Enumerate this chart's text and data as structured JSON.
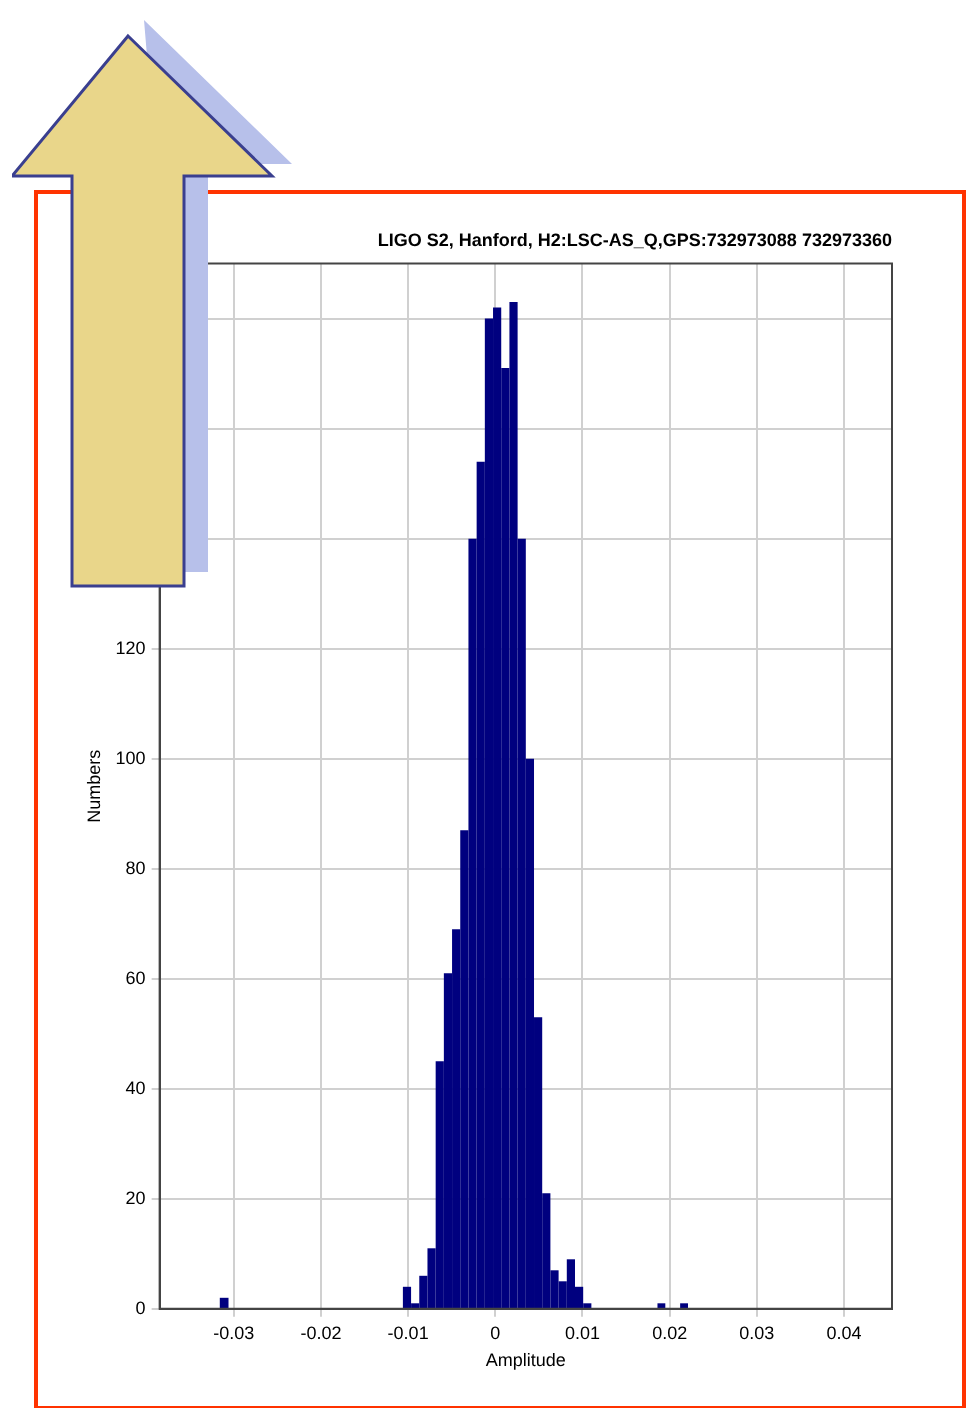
{
  "chart_data": {
    "type": "histogram",
    "title": "LIGO S2, Hanford, H2:LSC-AS_Q,GPS:732973088 732973360",
    "xlabel": "Amplitude",
    "ylabel": "Numbers",
    "bins": [
      -0.0316,
      -0.0306,
      -0.0106,
      -0.00966,
      -0.00872,
      -0.00778,
      -0.00684,
      -0.0059,
      -0.00496,
      -0.00402,
      -0.00308,
      -0.00214,
      -0.0012,
      -0.00026,
      0.00068,
      0.00162,
      0.00256,
      0.0035,
      0.00444,
      0.00538,
      0.00632,
      0.00726,
      0.0082,
      0.00914,
      0.01008,
      0.01102,
      0.0186,
      0.0195,
      0.0212,
      0.0221
    ],
    "values": [
      2,
      0,
      4,
      1,
      6,
      11,
      45,
      61,
      69,
      87,
      140,
      154,
      180,
      182,
      171,
      183,
      140,
      100,
      53,
      21,
      7,
      5,
      9,
      4,
      1,
      0,
      1,
      0,
      1
    ],
    "color": "#00007f",
    "xlim": [
      -0.0385,
      0.0455
    ],
    "xticks": [
      -0.03,
      -0.02,
      -0.01,
      0,
      0.01,
      0.02,
      0.03,
      0.04
    ],
    "ylim": [
      0,
      190
    ],
    "yticks": [
      0,
      20,
      40,
      60,
      80,
      100,
      120,
      {
        "value": 140,
        "label": null
      },
      {
        "value": 160,
        "label": null
      },
      {
        "value": 180,
        "label": null
      }
    ],
    "grid": true
  }
}
